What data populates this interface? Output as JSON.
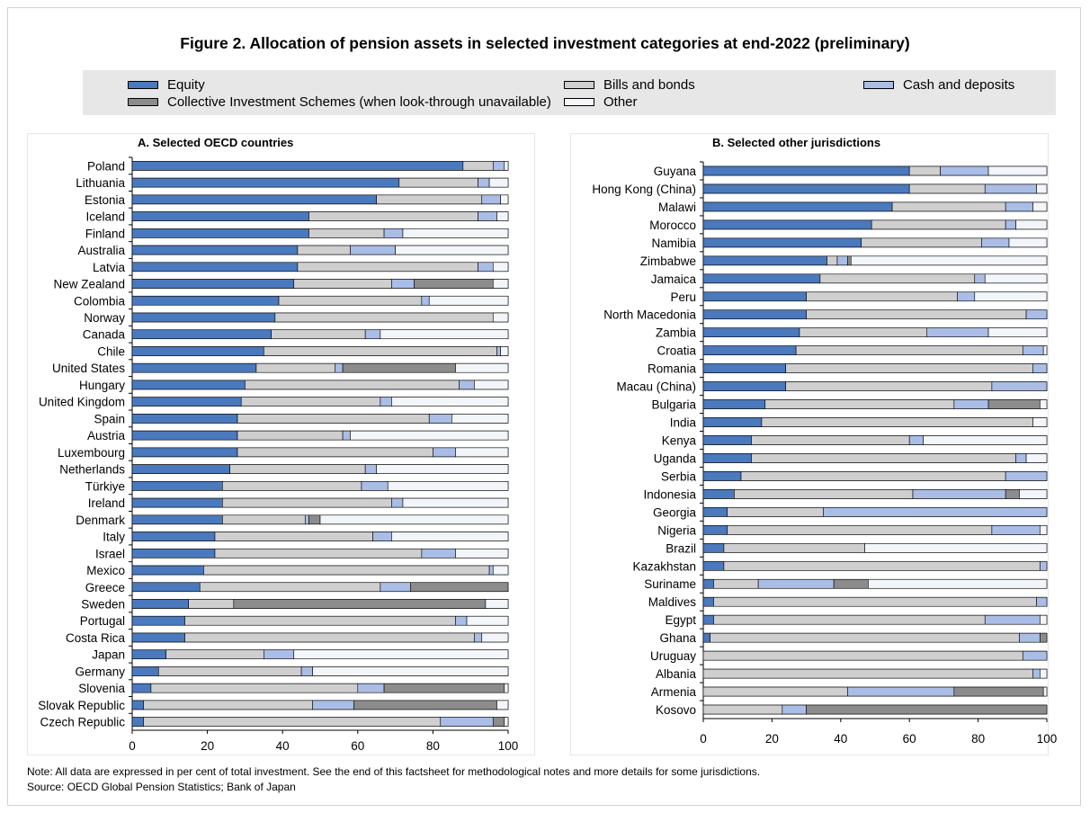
{
  "title": "Figure 2. Allocation of pension assets in selected investment categories at end-2022 (preliminary)",
  "legend": [
    {
      "label": "Equity",
      "color": "#4a79bd"
    },
    {
      "label": "Collective Investment Schemes (when look-through unavailable)",
      "color": "#8c8c8c"
    },
    {
      "label": "Bills and bonds",
      "color": "#cfcfcf"
    },
    {
      "label": "Other",
      "color": "#f2f6fb"
    },
    {
      "label": "Cash and deposits",
      "color": "#a9bde6"
    }
  ],
  "note": "Note: All data are expressed in per cent of total investment. See the end of this factsheet for methodological notes and more details for some jurisdictions.",
  "source": "Source: OECD Global Pension Statistics; Bank of Japan",
  "chart_data": [
    {
      "type": "bar",
      "orientation": "horizontal",
      "stacked": true,
      "title": "A. Selected OECD countries",
      "xlim": [
        0,
        100
      ],
      "xticks": [
        0,
        20,
        40,
        60,
        80,
        100
      ],
      "series_order": [
        "Equity",
        "Bills and bonds",
        "Cash and deposits",
        "Collective Investment Schemes (when look-through unavailable)",
        "Other"
      ],
      "categories": [
        "Poland",
        "Lithuania",
        "Estonia",
        "Iceland",
        "Finland",
        "Australia",
        "Latvia",
        "New Zealand",
        "Colombia",
        "Norway",
        "Canada",
        "Chile",
        "United States",
        "Hungary",
        "United Kingdom",
        "Spain",
        "Austria",
        "Luxembourg",
        "Netherlands",
        "Türkiye",
        "Ireland",
        "Denmark",
        "Italy",
        "Israel",
        "Mexico",
        "Greece",
        "Sweden",
        "Portugal",
        "Costa Rica",
        "Japan",
        "Germany",
        "Slovenia",
        "Slovak Republic",
        "Czech Republic"
      ],
      "series": [
        {
          "name": "Equity",
          "values": [
            88,
            71,
            65,
            47,
            47,
            44,
            44,
            43,
            39,
            38,
            37,
            35,
            33,
            30,
            29,
            28,
            28,
            28,
            26,
            24,
            24,
            24,
            22,
            22,
            19,
            18,
            15,
            14,
            14,
            9,
            7,
            5,
            3,
            3
          ]
        },
        {
          "name": "Bills and bonds",
          "values": [
            8,
            21,
            28,
            45,
            20,
            14,
            48,
            26,
            38,
            58,
            25,
            62,
            21,
            57,
            37,
            51,
            28,
            52,
            36,
            37,
            45,
            22,
            42,
            55,
            76,
            48,
            12,
            72,
            77,
            26,
            38,
            55,
            45,
            79
          ]
        },
        {
          "name": "Cash and deposits",
          "values": [
            3,
            3,
            5,
            5,
            5,
            12,
            4,
            6,
            2,
            0,
            4,
            1,
            2,
            4,
            3,
            6,
            2,
            6,
            3,
            7,
            3,
            1,
            5,
            9,
            1,
            8,
            0,
            3,
            2,
            8,
            3,
            7,
            11,
            14
          ]
        },
        {
          "name": "Collective Investment Schemes (when look-through unavailable)",
          "values": [
            0,
            0,
            0,
            0,
            0,
            0,
            0,
            21,
            0,
            0,
            0,
            0,
            30,
            0,
            0,
            0,
            0,
            0,
            0,
            0,
            0,
            3,
            0,
            0,
            0,
            26,
            67,
            0,
            0,
            0,
            0,
            32,
            38,
            3
          ]
        },
        {
          "name": "Other",
          "values": [
            1,
            5,
            2,
            3,
            28,
            30,
            4,
            4,
            21,
            4,
            34,
            2,
            14,
            9,
            31,
            15,
            42,
            14,
            35,
            32,
            28,
            50,
            31,
            14,
            4,
            0,
            6,
            11,
            7,
            57,
            52,
            1,
            3,
            1
          ]
        }
      ]
    },
    {
      "type": "bar",
      "orientation": "horizontal",
      "stacked": true,
      "title": "B. Selected other jurisdictions",
      "xlim": [
        0,
        100
      ],
      "xticks": [
        0,
        20,
        40,
        60,
        80,
        100
      ],
      "series_order": [
        "Equity",
        "Bills and bonds",
        "Cash and deposits",
        "Collective Investment Schemes (when look-through unavailable)",
        "Other"
      ],
      "categories": [
        "Guyana",
        "Hong Kong (China)",
        "Malawi",
        "Morocco",
        "Namibia",
        "Zimbabwe",
        "Jamaica",
        "Peru",
        "North Macedonia",
        "Zambia",
        "Croatia",
        "Romania",
        "Macau (China)",
        "Bulgaria",
        "India",
        "Kenya",
        "Uganda",
        "Serbia",
        "Indonesia",
        "Georgia",
        "Nigeria",
        "Brazil",
        "Kazakhstan",
        "Suriname",
        "Maldives",
        "Egypt",
        "Ghana",
        "Uruguay",
        "Albania",
        "Armenia",
        "Kosovo"
      ],
      "series": [
        {
          "name": "Equity",
          "values": [
            60,
            60,
            55,
            49,
            46,
            36,
            34,
            30,
            30,
            28,
            27,
            24,
            24,
            18,
            17,
            14,
            14,
            11,
            9,
            7,
            7,
            6,
            6,
            3,
            3,
            3,
            2,
            0,
            0,
            0,
            0
          ]
        },
        {
          "name": "Bills and bonds",
          "values": [
            9,
            22,
            33,
            39,
            35,
            3,
            45,
            44,
            64,
            37,
            66,
            72,
            60,
            55,
            79,
            46,
            77,
            77,
            52,
            28,
            77,
            41,
            92,
            13,
            94,
            79,
            90,
            93,
            96,
            42,
            23
          ]
        },
        {
          "name": "Cash and deposits",
          "values": [
            14,
            15,
            8,
            3,
            8,
            3,
            3,
            5,
            6,
            18,
            6,
            4,
            16,
            10,
            0,
            4,
            3,
            12,
            27,
            65,
            14,
            0,
            2,
            22,
            3,
            16,
            6,
            7,
            2,
            31,
            7
          ]
        },
        {
          "name": "Collective Investment Schemes (when look-through unavailable)",
          "values": [
            0,
            0,
            0,
            0,
            0,
            1,
            0,
            0,
            0,
            0,
            0,
            0,
            0,
            15,
            0,
            0,
            0,
            0,
            4,
            0,
            0,
            0,
            0,
            10,
            0,
            0,
            2,
            0,
            0,
            26,
            70
          ]
        },
        {
          "name": "Other",
          "values": [
            17,
            3,
            4,
            9,
            11,
            57,
            18,
            21,
            0,
            17,
            1,
            0,
            0,
            2,
            4,
            36,
            6,
            0,
            8,
            0,
            2,
            53,
            0,
            52,
            0,
            2,
            0,
            0,
            2,
            1,
            0
          ]
        }
      ]
    }
  ]
}
